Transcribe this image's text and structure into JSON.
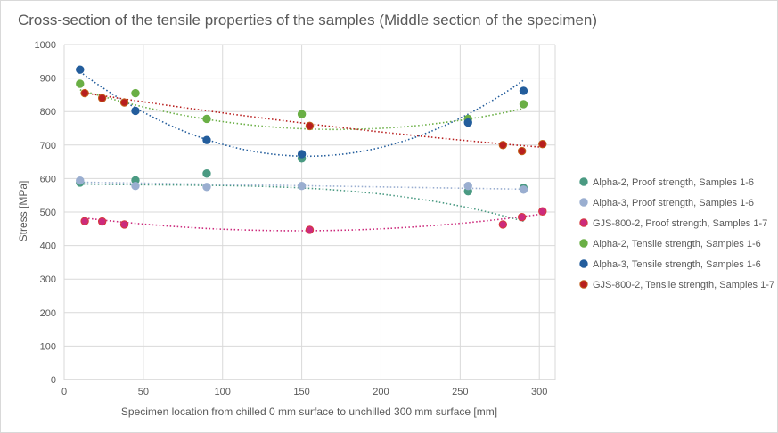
{
  "chart_data": {
    "type": "scatter",
    "title": "Cross-section of the tensile properties of the samples (Middle section of the specimen)",
    "xlabel": "Specimen location from chilled 0 mm surface to unchilled 300 mm surface [mm]",
    "ylabel": "Stress [MPa]",
    "xlim": [
      0,
      310
    ],
    "ylim": [
      0,
      1000
    ],
    "x_ticks": [
      0,
      50,
      100,
      150,
      200,
      250,
      300
    ],
    "y_ticks": [
      0,
      100,
      200,
      300,
      400,
      500,
      600,
      700,
      800,
      900,
      1000
    ],
    "grid": true,
    "trendlines": true,
    "legend_position": "right",
    "series": [
      {
        "name": "Alpha-2, Proof strength, Samples 1-6",
        "color": "#4a9a82",
        "edge": "#4a9a82",
        "x": [
          10,
          45,
          90,
          150,
          255,
          290
        ],
        "y": [
          588,
          595,
          615,
          660,
          562,
          572
        ],
        "trend": [
          585,
          -0.125,
          0.0015,
          -8.3e-06
        ]
      },
      {
        "name": "Alpha-3, Proof strength, Samples 1-6",
        "color": "#9aaed0",
        "edge": "#9aaed0",
        "x": [
          10,
          45,
          90,
          150,
          255,
          290
        ],
        "y": [
          594,
          578,
          575,
          578,
          578,
          567
        ],
        "trend": [
          590,
          -0.075
        ]
      },
      {
        "name": "GJS-800-2, Proof strength, Samples 1-7",
        "color": "#cc2a7c",
        "edge": "#d63a3a",
        "x": [
          13,
          24,
          38,
          155,
          277,
          289,
          302
        ],
        "y": [
          473,
          472,
          463,
          447,
          463,
          485,
          502
        ],
        "trend": [
          490,
          -0.62,
          0.0021
        ]
      },
      {
        "name": "Alpha-2, Tensile strength, Samples 1-6",
        "color": "#6aaf45",
        "edge": "#6aaf45",
        "x": [
          10,
          45,
          90,
          150,
          255,
          290
        ],
        "y": [
          883,
          855,
          778,
          792,
          778,
          822
        ],
        "trend": [
          880,
          -1.55,
          0.0045
        ]
      },
      {
        "name": "Alpha-3, Tensile strength, Samples 1-6",
        "color": "#235d9c",
        "edge": "#235d9c",
        "x": [
          10,
          45,
          90,
          150,
          255,
          290
        ],
        "y": [
          925,
          802,
          715,
          673,
          767,
          862
        ],
        "trend": [
          955,
          -3.75,
          0.0122
        ]
      },
      {
        "name": "GJS-800-2, Tensile strength, Samples 1-7",
        "color": "#b81e1e",
        "edge": "#c0601a",
        "x": [
          13,
          24,
          38,
          155,
          277,
          289,
          302
        ],
        "y": [
          855,
          840,
          827,
          757,
          700,
          682,
          703
        ],
        "trend": [
          865,
          -0.75,
          0.0006
        ]
      }
    ]
  }
}
